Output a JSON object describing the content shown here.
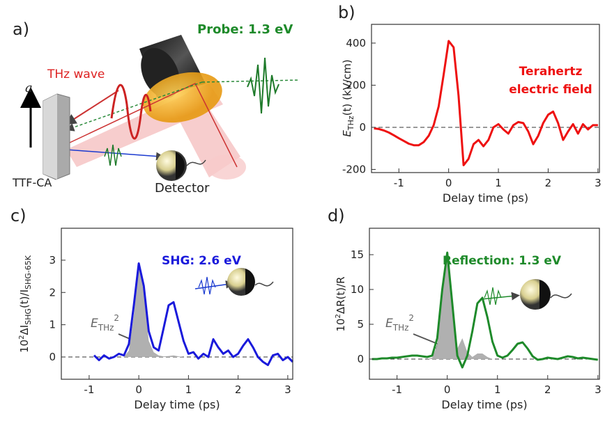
{
  "schematic": {
    "panel": "a)",
    "thz": "THz wave",
    "probe": "Probe: 1.3 eV",
    "axis": "a",
    "sample": "TTF-CA",
    "detector": "Detector"
  },
  "chart_data": [
    {
      "type": "line",
      "panel": "b)",
      "xlabel": "Delay time (ps)",
      "ylabel": [
        "E",
        "THz",
        "(t) (kV/cm)"
      ],
      "annotation": [
        "Terahertz",
        "electric field"
      ],
      "annotation_color": "#ee1111",
      "xlim": [
        -1.55,
        3.03
      ],
      "ylim": [
        -215,
        489
      ],
      "xticks": [
        -1,
        0,
        1,
        2,
        3
      ],
      "yticks": [
        -200,
        0,
        200,
        400
      ],
      "zero_line": true,
      "x": [
        -1.5,
        -1.4,
        -1.3,
        -1.2,
        -1.1,
        -1.0,
        -0.9,
        -0.8,
        -0.7,
        -0.6,
        -0.5,
        -0.4,
        -0.3,
        -0.2,
        -0.1,
        0,
        0.1,
        0.2,
        0.3,
        0.4,
        0.5,
        0.6,
        0.7,
        0.8,
        0.9,
        1.0,
        1.1,
        1.2,
        1.3,
        1.4,
        1.5,
        1.6,
        1.7,
        1.8,
        1.9,
        2.0,
        2.1,
        2.2,
        2.3,
        2.4,
        2.5,
        2.6,
        2.7,
        2.8,
        2.9,
        3.0
      ],
      "series": [
        {
          "color": "#ee1111",
          "values": [
            -5,
            -8,
            -15,
            -25,
            -38,
            -52,
            -65,
            -78,
            -85,
            -85,
            -70,
            -40,
            10,
            100,
            250,
            410,
            380,
            150,
            -180,
            -150,
            -80,
            -60,
            -90,
            -60,
            0,
            15,
            -10,
            -30,
            10,
            25,
            20,
            -20,
            -80,
            -40,
            20,
            60,
            75,
            20,
            -60,
            -20,
            15,
            -30,
            15,
            -10,
            10,
            10
          ]
        }
      ]
    },
    {
      "type": "line",
      "panel": "c)",
      "xlabel": "Delay time (ps)",
      "ylabel": [
        "10",
        "2",
        "ΔI",
        "SHG",
        "(t)/I",
        "SHG-65K"
      ],
      "annotation": [
        "SHG: 2.6 eV"
      ],
      "annotation_color": "#1a1adb",
      "fill_label": [
        "E",
        "THz",
        "2"
      ],
      "xlim": [
        -1.56,
        3.1
      ],
      "ylim": [
        -0.69,
        3.99
      ],
      "xticks": [
        -1,
        0,
        1,
        2,
        3
      ],
      "yticks": [
        0,
        1,
        2,
        3
      ],
      "zero_line": true,
      "x": [
        -0.9,
        -0.8,
        -0.7,
        -0.6,
        -0.5,
        -0.4,
        -0.3,
        -0.2,
        -0.1,
        0,
        0.1,
        0.2,
        0.3,
        0.4,
        0.5,
        0.6,
        0.7,
        0.8,
        0.9,
        1.0,
        1.1,
        1.2,
        1.3,
        1.4,
        1.5,
        1.6,
        1.7,
        1.8,
        1.9,
        2.0,
        2.1,
        2.2,
        2.3,
        2.4,
        2.5,
        2.6,
        2.7,
        2.8,
        2.9,
        3.0,
        3.1
      ],
      "series": [
        {
          "color": "#b0b0b0",
          "fill": true,
          "values": [
            0,
            0,
            0,
            0,
            0,
            0,
            0,
            0.2,
            1.3,
            2.9,
            2.0,
            0.5,
            0.15,
            0.05,
            0.02,
            0.03,
            0.05,
            0.02,
            0,
            0,
            0,
            0,
            0,
            0,
            0,
            0,
            0,
            0,
            0,
            0,
            0,
            0,
            0,
            0,
            0,
            0,
            0,
            0,
            0,
            0,
            0
          ]
        },
        {
          "color": "#1a1adb",
          "values": [
            0.05,
            -0.1,
            0.05,
            -0.05,
            0.0,
            0.1,
            0.05,
            0.4,
            1.6,
            2.9,
            2.2,
            0.8,
            0.3,
            0.2,
            0.9,
            1.6,
            1.7,
            1.1,
            0.5,
            0.1,
            0.15,
            -0.05,
            0.1,
            0.0,
            0.55,
            0.3,
            0.1,
            0.2,
            0.0,
            0.1,
            0.35,
            0.55,
            0.3,
            0.0,
            -0.15,
            -0.25,
            0.05,
            0.1,
            -0.1,
            0.0,
            -0.15
          ]
        }
      ]
    },
    {
      "type": "line",
      "panel": "d)",
      "xlabel": "Delay time (ps)",
      "ylabel": [
        "10",
        "2",
        "ΔR(t)/R"
      ],
      "annotation": [
        "Reflection: 1.3 eV"
      ],
      "annotation_color": "#1e8a2a",
      "fill_label": [
        "E",
        "THz",
        "2"
      ],
      "xlim": [
        -1.55,
        3.03
      ],
      "ylim": [
        -2.9,
        18.8
      ],
      "xticks": [
        -1,
        0,
        1,
        2,
        3
      ],
      "yticks": [
        0,
        5,
        10,
        15
      ],
      "zero_line": true,
      "x": [
        -1.5,
        -1.4,
        -1.3,
        -1.2,
        -1.1,
        -1.0,
        -0.9,
        -0.8,
        -0.7,
        -0.6,
        -0.5,
        -0.4,
        -0.3,
        -0.2,
        -0.1,
        0,
        0.1,
        0.2,
        0.3,
        0.4,
        0.5,
        0.6,
        0.7,
        0.8,
        0.9,
        1.0,
        1.1,
        1.2,
        1.3,
        1.4,
        1.5,
        1.6,
        1.7,
        1.8,
        1.9,
        2.0,
        2.1,
        2.2,
        2.3,
        2.4,
        2.5,
        2.6,
        2.7,
        2.8,
        2.9,
        3.0
      ],
      "series": [
        {
          "color": "#b0b0b0",
          "fill": true,
          "values": [
            0,
            0,
            0,
            0,
            0,
            0,
            0,
            0,
            0,
            0,
            0,
            0,
            0.2,
            2,
            10,
            15,
            8,
            1.5,
            3,
            1,
            0.3,
            0.8,
            0.8,
            0.3,
            0,
            0,
            0,
            0,
            0,
            0,
            0,
            0,
            0,
            0,
            0,
            0,
            0,
            0,
            0,
            0,
            0,
            0,
            0,
            0,
            0,
            0
          ]
        },
        {
          "color": "#1e8a2a",
          "values": [
            0,
            0,
            0.1,
            0.1,
            0.2,
            0.2,
            0.3,
            0.4,
            0.5,
            0.5,
            0.4,
            0.3,
            0.5,
            3,
            10,
            15.3,
            8,
            0.5,
            -1.2,
            0.5,
            4,
            8,
            8.8,
            6,
            2.5,
            0.5,
            0.2,
            0.5,
            1.3,
            2.2,
            2.4,
            1.5,
            0.4,
            -0.1,
            0,
            0.2,
            0.1,
            0,
            0.2,
            0.4,
            0.3,
            0.1,
            0.2,
            0.1,
            0,
            -0.1
          ]
        }
      ]
    }
  ]
}
